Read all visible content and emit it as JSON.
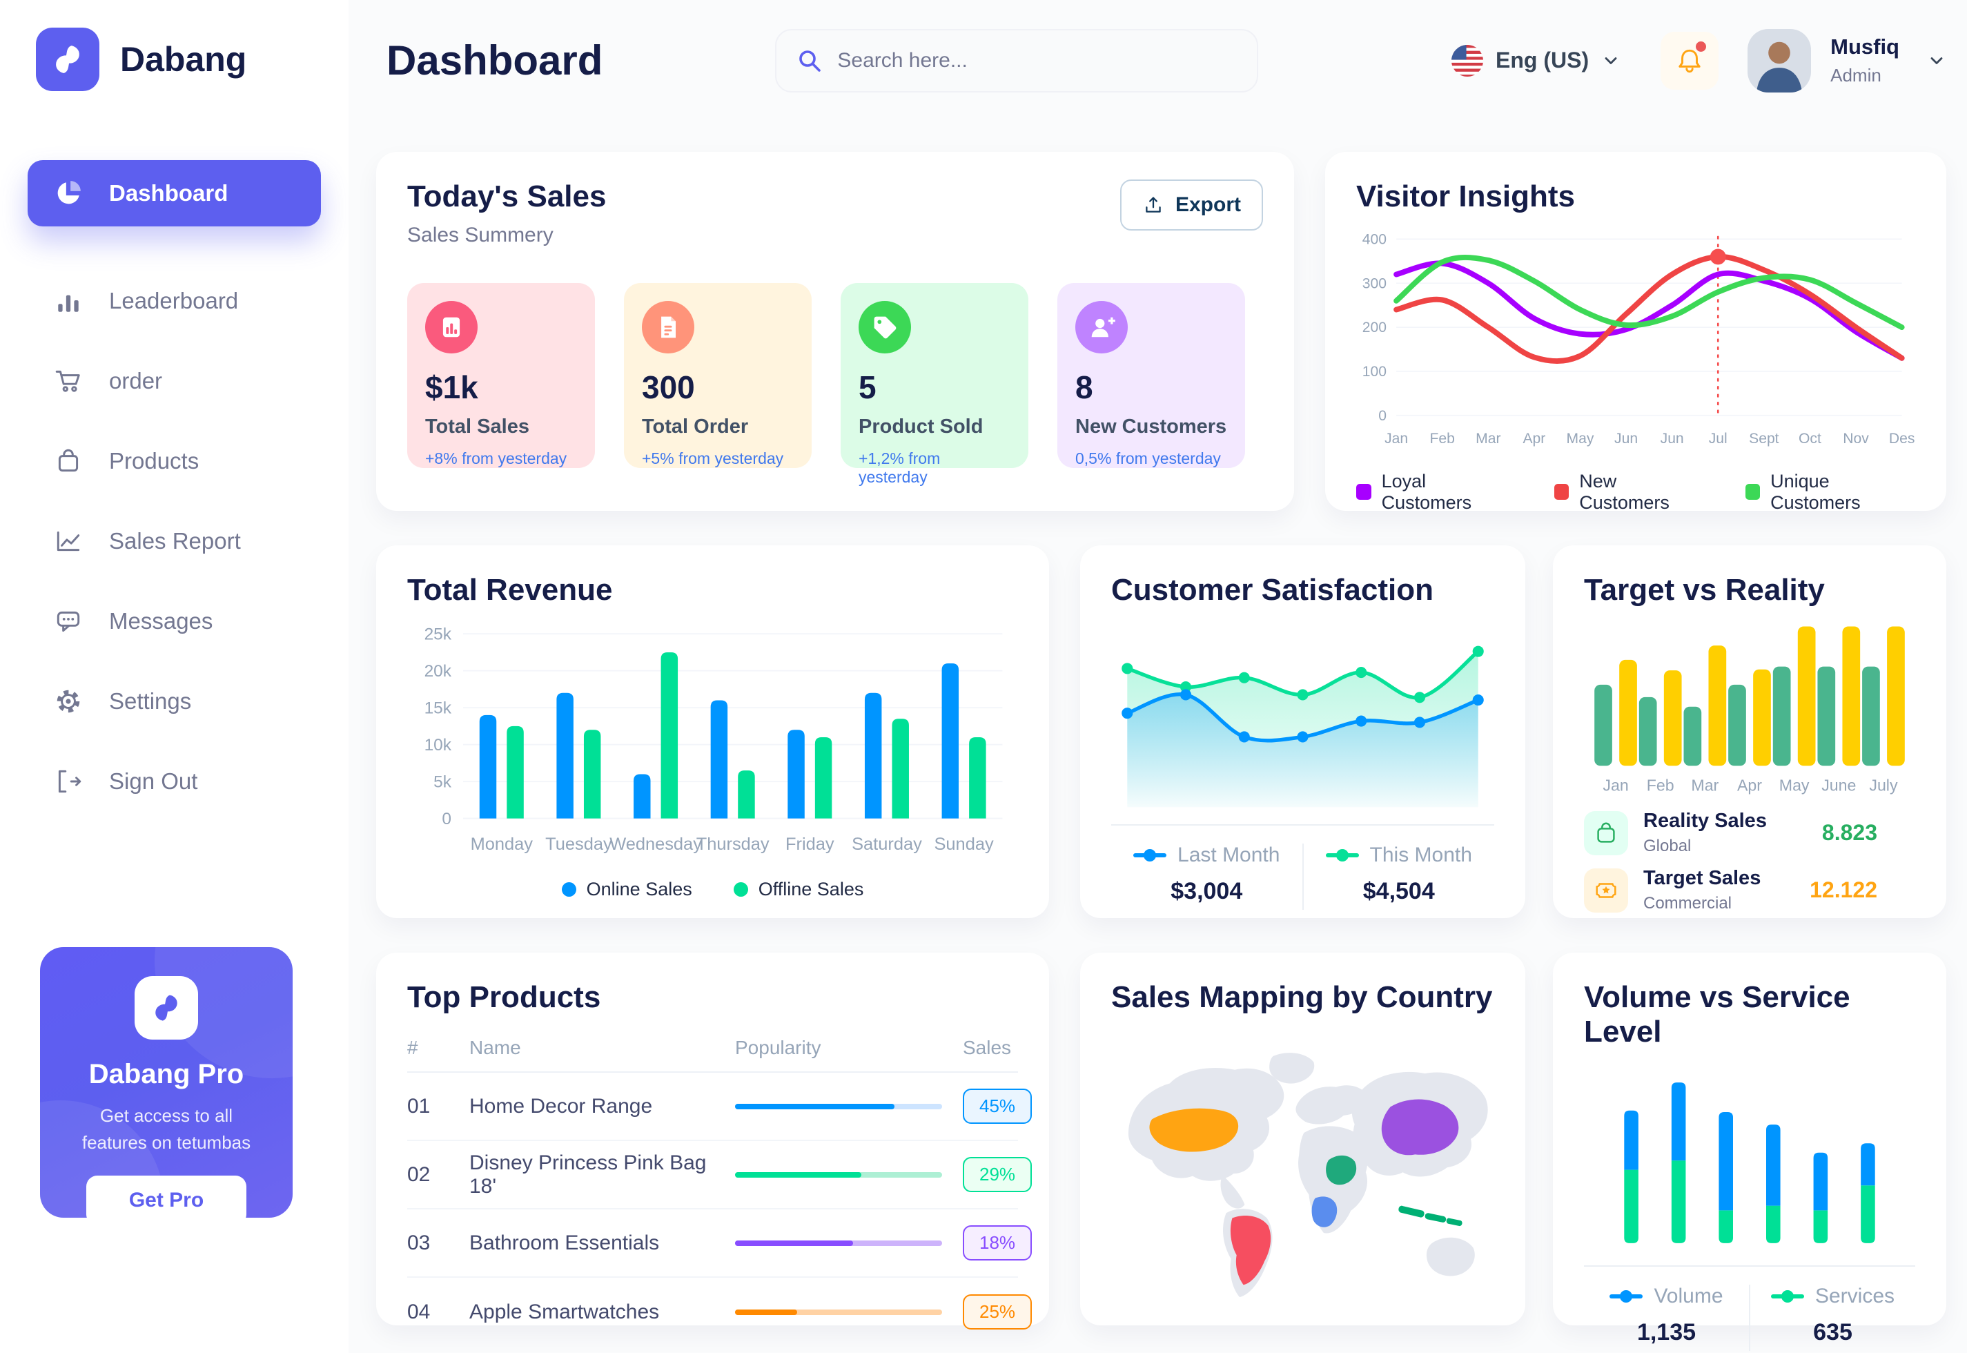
{
  "app": {
    "brand": "Dabang",
    "accent_color": "#5D5FEF"
  },
  "header": {
    "title": "Dashboard",
    "search_placeholder": "Search here...",
    "language": "Eng (US)",
    "user": {
      "name": "Musfiq",
      "role": "Admin"
    }
  },
  "sidebar": {
    "items": [
      {
        "label": "Dashboard",
        "icon": "pie-chart-icon",
        "active": true
      },
      {
        "label": "Leaderboard",
        "icon": "bar-chart-icon",
        "active": false
      },
      {
        "label": "order",
        "icon": "cart-icon",
        "active": false
      },
      {
        "label": "Products",
        "icon": "bag-icon",
        "active": false
      },
      {
        "label": "Sales Report",
        "icon": "line-chart-icon",
        "active": false
      },
      {
        "label": "Messages",
        "icon": "message-icon",
        "active": false
      },
      {
        "label": "Settings",
        "icon": "gear-icon",
        "active": false
      },
      {
        "label": "Sign Out",
        "icon": "sign-out-icon",
        "active": false
      }
    ],
    "promo": {
      "title": "Dabang Pro",
      "subtitle": "Get access to all features on tetumbas",
      "cta": "Get Pro"
    }
  },
  "today_sales": {
    "title": "Today's Sales",
    "subtitle": "Sales Summery",
    "export_label": "Export",
    "cards": [
      {
        "value": "$1k",
        "label": "Total Sales",
        "delta": "+8% from yesterday",
        "bg": "#FFE2E5",
        "icon_bg": "#FA5A7D",
        "icon": "sales-chart-icon"
      },
      {
        "value": "300",
        "label": "Total Order",
        "delta": "+5% from yesterday",
        "bg": "#FFF4DE",
        "icon_bg": "#FF947A",
        "icon": "order-list-icon"
      },
      {
        "value": "5",
        "label": "Product Sold",
        "delta": "+1,2% from yesterday",
        "bg": "#DCFCE7",
        "icon_bg": "#3CD856",
        "icon": "tag-icon"
      },
      {
        "value": "8",
        "label": "New Customers",
        "delta": "0,5% from yesterday",
        "bg": "#F3E8FF",
        "icon_bg": "#BF83FF",
        "icon": "user-plus-icon"
      }
    ]
  },
  "chart_data": [
    {
      "id": "visitor_insights",
      "type": "line",
      "title": "Visitor Insights",
      "categories": [
        "Jan",
        "Feb",
        "Mar",
        "Apr",
        "May",
        "Jun",
        "Jun",
        "Jul",
        "Sept",
        "Oct",
        "Nov",
        "Des"
      ],
      "yticks": [
        0,
        100,
        200,
        300,
        400
      ],
      "ylim": [
        0,
        400
      ],
      "legend_position": "bottom",
      "grid": true,
      "series": [
        {
          "name": "Loyal Customers",
          "color": "#A700FF",
          "values": [
            320,
            345,
            300,
            220,
            185,
            195,
            250,
            320,
            305,
            265,
            190,
            130
          ]
        },
        {
          "name": "New Customers",
          "color": "#EF4444",
          "values": [
            240,
            262,
            200,
            132,
            135,
            230,
            320,
            360,
            330,
            275,
            200,
            130
          ]
        },
        {
          "name": "Unique Customers",
          "color": "#3CD856",
          "values": [
            260,
            348,
            352,
            305,
            240,
            205,
            225,
            280,
            312,
            308,
            255,
            200
          ]
        }
      ],
      "marker": {
        "category": "Jul",
        "index": 7,
        "value": 360,
        "color": "#F64E4E"
      }
    },
    {
      "id": "total_revenue",
      "type": "bar",
      "title": "Total Revenue",
      "categories": [
        "Monday",
        "Tuesday",
        "Wednesday",
        "Thursday",
        "Friday",
        "Saturday",
        "Sunday"
      ],
      "ytick_labels": [
        "0",
        "5k",
        "10k",
        "15k",
        "20k",
        "25k"
      ],
      "ylim": [
        0,
        25
      ],
      "unit": "k",
      "legend_position": "bottom",
      "grid": true,
      "series": [
        {
          "name": "Online Sales",
          "color": "#0095FF",
          "values": [
            14,
            17,
            6,
            16,
            12,
            17,
            21
          ]
        },
        {
          "name": "Offline Sales",
          "color": "#00E096",
          "values": [
            12.5,
            12,
            22.5,
            6.5,
            11,
            13.5,
            11
          ]
        }
      ]
    },
    {
      "id": "customer_satisfaction",
      "type": "area",
      "title": "Customer Satisfaction",
      "x_count": 7,
      "ylim": [
        0,
        110
      ],
      "series": [
        {
          "name": "Last Month",
          "color": "#0095FF",
          "total": "$3,004",
          "values": [
            48,
            62,
            30,
            30,
            42,
            41,
            58
          ]
        },
        {
          "name": "This Month",
          "color": "#07E098",
          "total": "$4,504",
          "values": [
            82,
            68,
            75,
            62,
            79,
            60,
            95
          ]
        }
      ]
    },
    {
      "id": "target_vs_reality",
      "type": "bar",
      "title": "Target vs Reality",
      "categories": [
        "Jan",
        "Feb",
        "Mar",
        "Apr",
        "May",
        "June",
        "July"
      ],
      "ylim": [
        0,
        15
      ],
      "series": [
        {
          "name": "Reality Sales",
          "color": "#4AB58E",
          "values": [
            8.5,
            7.2,
            6.2,
            8.5,
            10.4,
            10.4,
            10.4
          ]
        },
        {
          "name": "Target Sales",
          "color": "#FFCF00",
          "values": [
            11.1,
            10,
            12.6,
            10.1,
            14.6,
            14.6,
            14.6
          ]
        }
      ],
      "legend": [
        {
          "label": "Reality Sales",
          "sublabel": "Global",
          "value": "8.823",
          "value_color": "#27AE60",
          "icon": "bag-line-icon",
          "icon_bg": "#E2FFF3",
          "icon_color": "#27AE60"
        },
        {
          "label": "Target Sales",
          "sublabel": "Commercial",
          "value": "12.122",
          "value_color": "#FFA412",
          "icon": "ticket-star-icon",
          "icon_bg": "#FFF4DE",
          "icon_color": "#FFA412"
        }
      ]
    },
    {
      "id": "volume_vs_service",
      "type": "stacked_bar",
      "title": "Volume vs Service Level",
      "x_count": 6,
      "series": [
        {
          "name": "Volume",
          "color": "#0095FF",
          "total": "1,135",
          "values": [
            38,
            50,
            63,
            52,
            37,
            27
          ]
        },
        {
          "name": "Services",
          "color": "#00E096",
          "total": "635",
          "values": [
            47,
            53,
            21,
            24,
            21,
            37
          ]
        }
      ]
    },
    {
      "id": "top_products",
      "type": "table",
      "title": "Top Products",
      "columns": [
        "#",
        "Name",
        "Popularity",
        "Sales"
      ],
      "rows": [
        {
          "rank": "01",
          "name": "Home Decor Range",
          "popularity": 77,
          "sales": "45%",
          "color": "#0095FF",
          "track": "#CDE4FF",
          "badge_bg": "#EAF5FF"
        },
        {
          "rank": "02",
          "name": "Disney Princess Pink Bag 18'",
          "popularity": 61,
          "sales": "29%",
          "color": "#00E096",
          "track": "#ADEFD4",
          "badge_bg": "#EBFFF3"
        },
        {
          "rank": "03",
          "name": "Bathroom Essentials",
          "popularity": 57,
          "sales": "18%",
          "color": "#884DFF",
          "track": "#CDB3FB",
          "badge_bg": "#F6EEFF"
        },
        {
          "rank": "04",
          "name": "Apple Smartwatches",
          "popularity": 30,
          "sales": "25%",
          "color": "#FF8900",
          "track": "#FFD2A4",
          "badge_bg": "#FFF6EA"
        }
      ]
    },
    {
      "id": "sales_mapping",
      "type": "map",
      "title": "Sales Mapping by Country",
      "countries": [
        {
          "name": "United States",
          "color": "#FFA412"
        },
        {
          "name": "Brazil",
          "color": "#F64E60"
        },
        {
          "name": "Saudi Arabia",
          "color": "#1FA97C"
        },
        {
          "name": "DR Congo",
          "color": "#5A8DEE"
        },
        {
          "name": "China",
          "color": "#9B51E0"
        },
        {
          "name": "Indonesia",
          "color": "#00B074"
        }
      ]
    }
  ]
}
